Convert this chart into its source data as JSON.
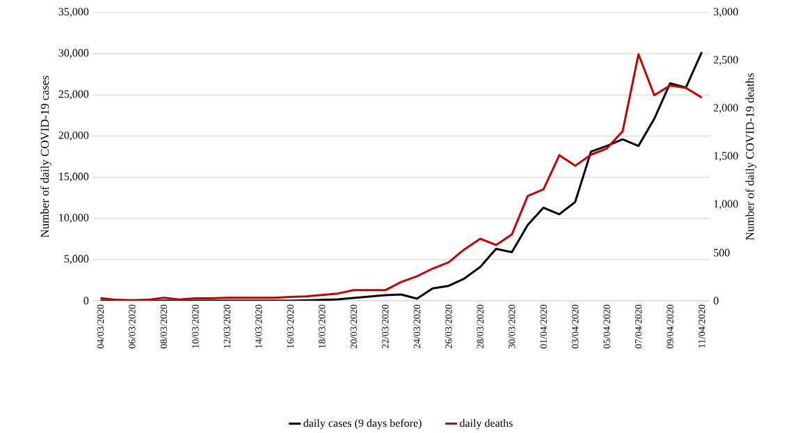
{
  "chart_data": {
    "type": "line",
    "xlabel": null,
    "ylabel": "Number of daily COVID-19 cases",
    "y2label": "Number of daily COVID-19 deaths",
    "categories": [
      "04/03/2020",
      null,
      "06/03/2020",
      null,
      "08/03/2020",
      null,
      "10/03/2020",
      null,
      "12/03/2020",
      null,
      "14/03/2020",
      null,
      "16/03/2020",
      null,
      "18/03/2020",
      null,
      "20/03/2020",
      null,
      "22/03/2020",
      null,
      "24/03/2020",
      null,
      "26/03/2020",
      null,
      "28/03/2020",
      null,
      "30/03/2020",
      null,
      "01/04/2020",
      null,
      "03/04/2020",
      null,
      "05/04/2020",
      null,
      "07/04/2020",
      null,
      "09/04/2020",
      null,
      "11/04/2020"
    ],
    "series": [
      {
        "name": "daily cases (9 days before)",
        "color": "#000000",
        "values": [
          0,
          0,
          0,
          0,
          0,
          0,
          0,
          0,
          0,
          0,
          0,
          0,
          0,
          50,
          100,
          170,
          340,
          500,
          680,
          760,
          250,
          1500,
          1800,
          2700,
          4100,
          6300,
          5900,
          9200,
          11300,
          10500,
          12000,
          18100,
          18800,
          19600,
          18800,
          22100,
          26400,
          25900,
          30200
        ]
      },
      {
        "name": "daily deaths",
        "color": "#c00000",
        "axis": "y2",
        "values": [
          27,
          10,
          5,
          10,
          30,
          12,
          25,
          25,
          30,
          30,
          30,
          30,
          40,
          45,
          60,
          75,
          110,
          110,
          110,
          195,
          255,
          335,
          400,
          535,
          645,
          580,
          690,
          1090,
          1160,
          1515,
          1405,
          1520,
          1585,
          1765,
          2565,
          2140,
          2240,
          2215,
          2115
        ]
      }
    ],
    "ylim": [
      0,
      35000
    ],
    "yticks": [
      {
        "value": 0,
        "label": "0"
      },
      {
        "value": 5000,
        "label": "5,000"
      },
      {
        "value": 10000,
        "label": "10,000"
      },
      {
        "value": 15000,
        "label": "15,000"
      },
      {
        "value": 20000,
        "label": "20,000"
      },
      {
        "value": 25000,
        "label": "25,000"
      },
      {
        "value": 30000,
        "label": "30,000"
      },
      {
        "value": 35000,
        "label": "35,000"
      }
    ],
    "y2lim": [
      0,
      3000
    ],
    "y2ticks": [
      0,
      500,
      {
        "value": 1000,
        "label": "1,000"
      },
      {
        "value": 1500,
        "label": "1,500"
      },
      {
        "value": 2000,
        "label": "2,000"
      },
      {
        "value": 2500,
        "label": "2,500"
      },
      {
        "value": 3000,
        "label": "3,000"
      }
    ],
    "grid": "y",
    "legend": "bottom",
    "marker": "none",
    "line_style": "solid"
  }
}
